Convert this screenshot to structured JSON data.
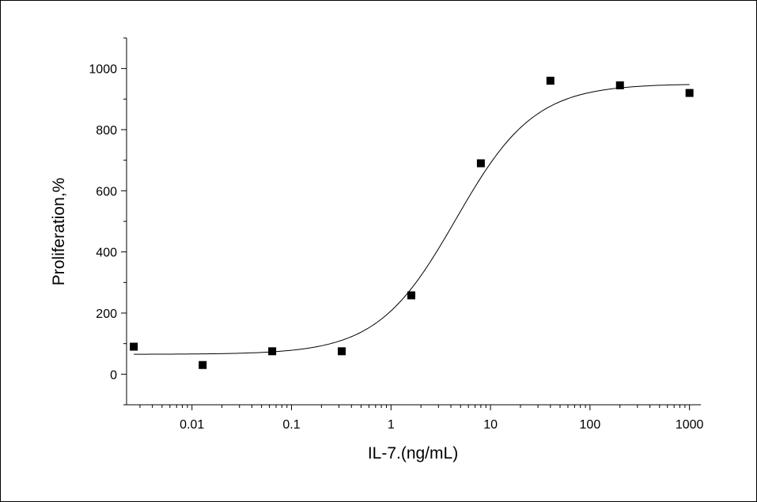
{
  "chart_data": {
    "type": "scatter",
    "title": "",
    "xlabel": "IL-7.(ng/mL)",
    "ylabel": "Proliferation,%",
    "x_scale": "log",
    "xlim": [
      0.0022,
      1300
    ],
    "ylim": [
      -100,
      1100
    ],
    "x_ticks": [
      {
        "value": 0.01,
        "label": "0.01"
      },
      {
        "value": 0.1,
        "label": "0.1"
      },
      {
        "value": 1,
        "label": "1"
      },
      {
        "value": 10,
        "label": "10"
      },
      {
        "value": 100,
        "label": "100"
      },
      {
        "value": 1000,
        "label": "1000"
      }
    ],
    "y_ticks": [
      {
        "value": 0,
        "label": "0"
      },
      {
        "value": 200,
        "label": "200"
      },
      {
        "value": 400,
        "label": "400"
      },
      {
        "value": 600,
        "label": "600"
      },
      {
        "value": 800,
        "label": "800"
      },
      {
        "value": 1000,
        "label": "1000"
      }
    ],
    "grid": false,
    "legend": "none",
    "marker": "square",
    "series": [
      {
        "points": [
          {
            "x": 0.0026,
            "y": 90
          },
          {
            "x": 0.0128,
            "y": 30
          },
          {
            "x": 0.064,
            "y": 75
          },
          {
            "x": 0.32,
            "y": 75
          },
          {
            "x": 1.6,
            "y": 258
          },
          {
            "x": 8,
            "y": 690
          },
          {
            "x": 40,
            "y": 960
          },
          {
            "x": 200,
            "y": 945
          },
          {
            "x": 1000,
            "y": 920
          }
        ]
      }
    ],
    "fit_curve": {
      "model": "4PL",
      "bottom": 65,
      "top": 950,
      "ec50": 4.5,
      "hill": 1.1,
      "x_range": [
        0.0026,
        1000
      ]
    },
    "colors": {
      "marker": "#000000",
      "curve": "#000000",
      "axis": "#000000"
    }
  }
}
